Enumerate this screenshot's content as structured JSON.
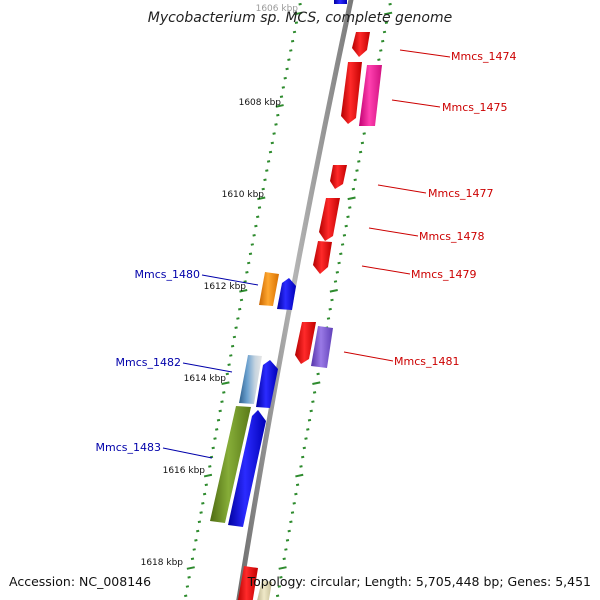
{
  "title": "Mycobacterium sp. MCS, complete genome",
  "footer": {
    "accession": "Accession: NC_008146",
    "summary": "Topology: circular; Length: 5,705,448 bp; Genes: 5,451"
  },
  "ticks": [
    {
      "label": "1606 kbp",
      "faded": true
    },
    {
      "label": "1608 kbp"
    },
    {
      "label": "1610 kbp"
    },
    {
      "label": "1612 kbp"
    },
    {
      "label": "1614 kbp"
    },
    {
      "label": "1616 kbp"
    },
    {
      "label": "1618 kbp"
    }
  ],
  "genes_forward": [
    {
      "label": "Mmcs_1474",
      "color": "#ee1111"
    },
    {
      "label": "Mmcs_1475",
      "color": "#ee1111"
    },
    {
      "label": "Mmcs_1477",
      "color": "#ee1111"
    },
    {
      "label": "Mmcs_1478",
      "color": "#ee1111"
    },
    {
      "label": "Mmcs_1479",
      "color": "#ee1111"
    },
    {
      "label": "Mmcs_1481",
      "color": "#ee1111"
    }
  ],
  "genes_reverse": [
    {
      "label": "Mmcs_1480",
      "color": "#1111cc"
    },
    {
      "label": "Mmcs_1482",
      "color": "#1111cc"
    },
    {
      "label": "Mmcs_1483",
      "color": "#1111cc"
    }
  ],
  "colors": {
    "backbone": "#8c8c8c",
    "tick_marks": "#2e8b2e",
    "forward_label": "#cc0000",
    "reverse_label": "#0000aa",
    "cds_forward": "#ee1111",
    "cds_reverse": "#1010ee",
    "pink": "#ee2299",
    "lavender": "#7755cc",
    "orange": "#ff8c00",
    "olive": "#6b8e23",
    "steelblue": "#4682b4"
  }
}
